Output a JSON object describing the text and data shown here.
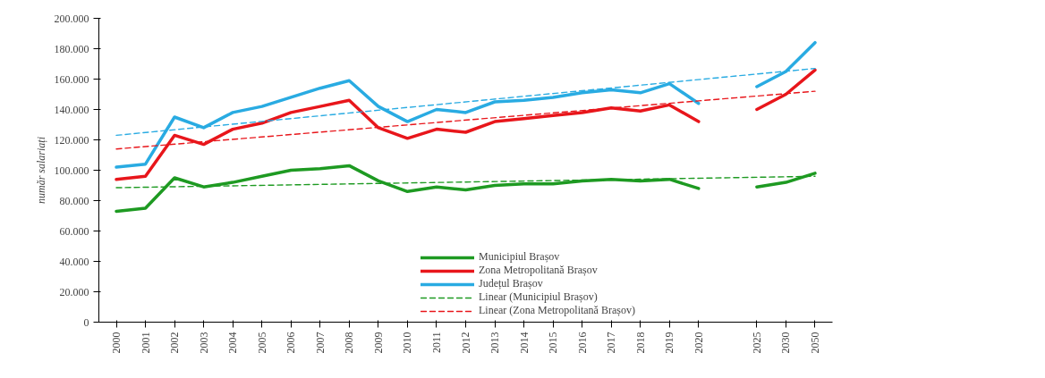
{
  "chart_data": {
    "type": "line",
    "ylabel": "număr salariați",
    "categories": [
      "2000",
      "2001",
      "2002",
      "2003",
      "2004",
      "2005",
      "2006",
      "2007",
      "2008",
      "2009",
      "2010",
      "2011",
      "2012",
      "2013",
      "2014",
      "2015",
      "2016",
      "2017",
      "2018",
      "2019",
      "2020",
      null,
      "2025",
      "2030",
      "2050"
    ],
    "series": [
      {
        "name": "Municipiul Brașov",
        "color": "#1e9a22",
        "values": [
          73000,
          75000,
          95000,
          89000,
          92000,
          96000,
          100000,
          101000,
          103000,
          93000,
          86000,
          89000,
          87000,
          90000,
          91000,
          91000,
          93000,
          94000,
          93000,
          94000,
          88000,
          null,
          89000,
          92000,
          98000
        ]
      },
      {
        "name": "Zona Metropolitană Brașov",
        "color": "#e8161b",
        "values": [
          94000,
          96000,
          123000,
          117000,
          127000,
          131000,
          138000,
          142000,
          146000,
          128000,
          121000,
          127000,
          125000,
          132000,
          134000,
          136000,
          138000,
          141000,
          139000,
          143000,
          132000,
          null,
          140000,
          150000,
          166000
        ]
      },
      {
        "name": "Județul Brașov",
        "color": "#29abe2",
        "values": [
          102000,
          104000,
          135000,
          128000,
          138000,
          142000,
          148000,
          154000,
          159000,
          142000,
          132000,
          140000,
          138000,
          145000,
          146000,
          148000,
          151000,
          153000,
          151000,
          157000,
          144000,
          null,
          155000,
          165000,
          184000
        ]
      },
      {
        "name": "Linear (Municipiul Brașov)",
        "color": "#1e9a22",
        "line_style": "dashed",
        "values": [
          88500,
          null,
          null,
          null,
          null,
          null,
          null,
          null,
          null,
          null,
          null,
          null,
          null,
          null,
          null,
          null,
          null,
          null,
          null,
          null,
          null,
          null,
          null,
          null,
          96000
        ]
      },
      {
        "name": "Linear (Zona Metropolitană Brașov)",
        "color": "#e8161b",
        "line_style": "dashed",
        "values": [
          114000,
          null,
          null,
          null,
          null,
          null,
          null,
          null,
          null,
          null,
          null,
          null,
          null,
          null,
          null,
          null,
          null,
          null,
          null,
          null,
          null,
          null,
          null,
          null,
          152000
        ]
      },
      {
        "color": "#29abe2",
        "line_style": "dashed",
        "values": [
          123000,
          null,
          null,
          null,
          null,
          null,
          null,
          null,
          null,
          null,
          null,
          null,
          null,
          null,
          null,
          null,
          null,
          null,
          null,
          null,
          null,
          null,
          null,
          null,
          167000
        ]
      }
    ],
    "ylim": [
      0,
      200000
    ],
    "yticks": [
      {
        "value": 0,
        "label": "0"
      },
      {
        "value": 20000,
        "label": "20.000"
      },
      {
        "value": 40000,
        "label": "40.000"
      },
      {
        "value": 60000,
        "label": "60.000"
      },
      {
        "value": 80000,
        "label": "80.000"
      },
      {
        "value": 100000,
        "label": "100.000"
      },
      {
        "value": 120000,
        "label": "120.000"
      },
      {
        "value": 140000,
        "label": "140.000"
      },
      {
        "value": 160000,
        "label": "160.000"
      },
      {
        "value": 180000,
        "label": "180.000"
      },
      {
        "value": 200000,
        "label": "200.000"
      }
    ],
    "grid": false,
    "legend": "bottom",
    "line_style": "solid",
    "marker": "none"
  }
}
